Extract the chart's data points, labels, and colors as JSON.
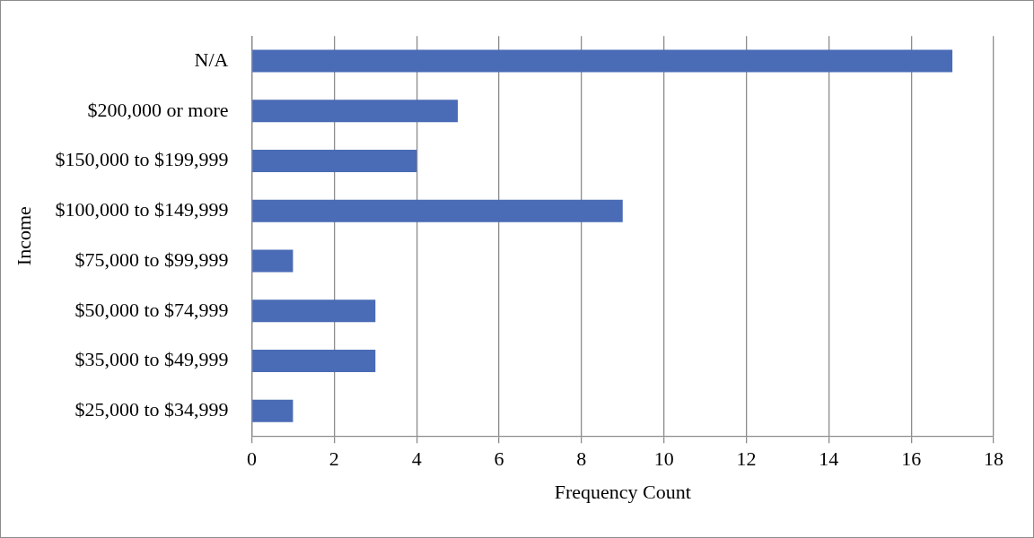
{
  "chart_data": {
    "type": "bar",
    "orientation": "horizontal",
    "xlabel": "Frequency Count",
    "ylabel": "Income",
    "categories": [
      "N/A",
      "$200,000 or more",
      "$150,000 to $199,999",
      "$100,000 to $149,999",
      "$75,000 to $99,999",
      "$50,000 to $74,999",
      "$35,000 to $49,999",
      "$25,000 to $34,999"
    ],
    "values": [
      17,
      5,
      4,
      9,
      1,
      3,
      3,
      1
    ],
    "color": "#4a6bb5",
    "xlim": [
      0,
      18
    ],
    "xticks": [
      0,
      2,
      4,
      6,
      8,
      10,
      12,
      14,
      16,
      18
    ],
    "grid": "x",
    "legend": false
  }
}
